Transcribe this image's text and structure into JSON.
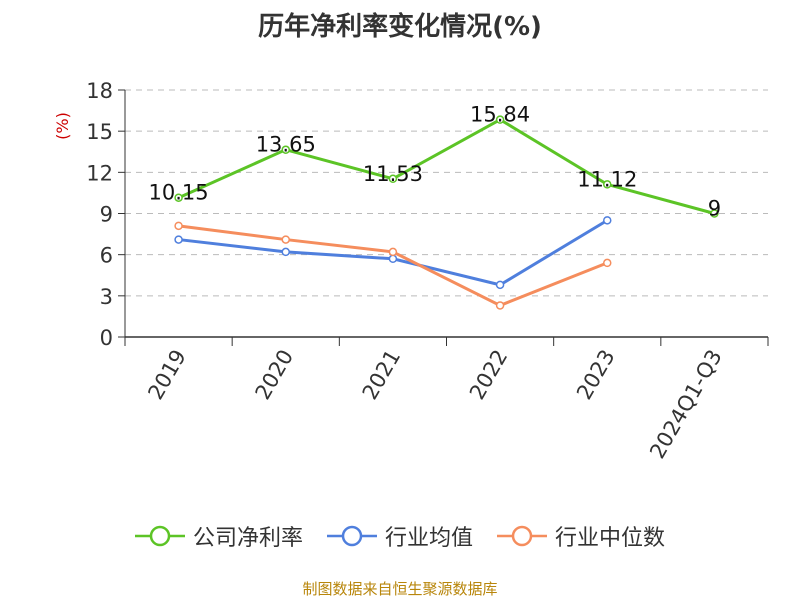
{
  "chart_data": {
    "type": "line",
    "title": "历年净利率变化情况(%)",
    "ylabel": "(%)",
    "categories": [
      "2019",
      "2020",
      "2021",
      "2022",
      "2023",
      "2024Q1-Q3"
    ],
    "ylim": [
      0,
      18
    ],
    "yticks": [
      0,
      3,
      6,
      9,
      12,
      15,
      18
    ],
    "grid": true,
    "legend_position": "bottom",
    "series": [
      {
        "name": "公司净利率",
        "color": "#5cc426",
        "values": [
          10.15,
          13.65,
          11.53,
          15.84,
          11.12,
          9
        ],
        "data_labels": [
          "10.15",
          "13.65",
          "11.53",
          "15.84",
          "11.12",
          "9"
        ]
      },
      {
        "name": "行业均值",
        "color": "#4f7fdd",
        "values": [
          7.1,
          6.2,
          5.7,
          3.8,
          8.5,
          null
        ]
      },
      {
        "name": "行业中位数",
        "color": "#f58d5d",
        "values": [
          8.1,
          7.1,
          6.2,
          2.3,
          5.4,
          null
        ]
      }
    ]
  },
  "source": "制图数据来自恒生聚源数据库"
}
